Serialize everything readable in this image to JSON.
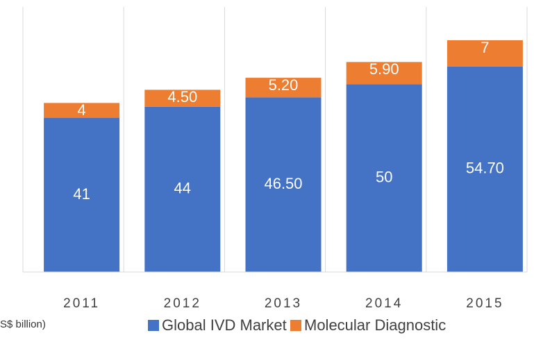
{
  "chart_data": {
    "type": "stacked_bar",
    "categories": [
      "2011",
      "2012",
      "2013",
      "2014",
      "2015"
    ],
    "series": [
      {
        "name": "Global IVD Market",
        "color": "#4472c4",
        "values": [
          41,
          44,
          46.5,
          50,
          54.7
        ],
        "value_labels": [
          "41",
          "44",
          "46.50",
          "50",
          "54.70"
        ]
      },
      {
        "name": "Molecular Diagnostic",
        "color": "#ed7d31",
        "values": [
          4,
          4.5,
          5.2,
          5.9,
          7
        ],
        "value_labels": [
          "4",
          "4.50",
          "5.20",
          "5.90",
          "7"
        ]
      }
    ],
    "unit_label": "S$ billion)",
    "ylim": [
      0,
      70
    ]
  }
}
